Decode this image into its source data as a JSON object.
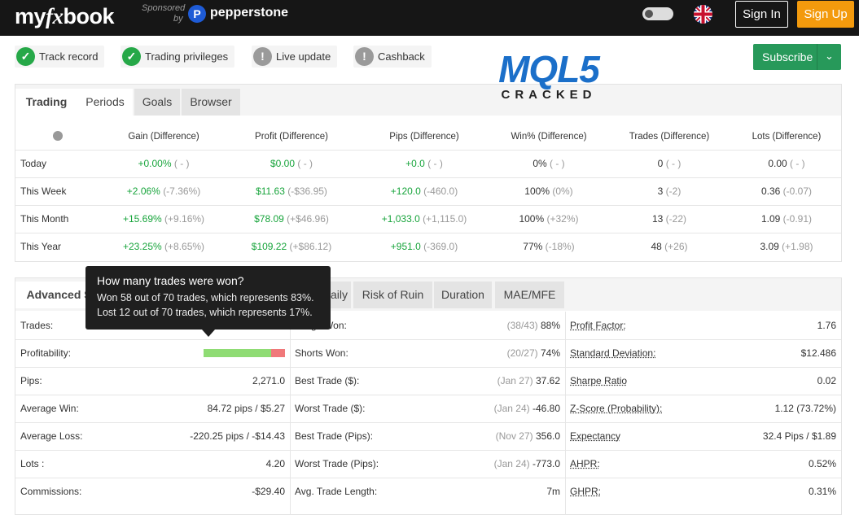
{
  "header": {
    "logo": [
      "my",
      "fx",
      "book"
    ],
    "sponsored": "Sponsored",
    "by": "by",
    "sponsor": "pepperstone",
    "sign_in": "Sign In",
    "sign_up": "Sign Up"
  },
  "badges": [
    "Track record",
    "Trading privileges",
    "Live update",
    "Cashback"
  ],
  "subscribe": "Subscribe",
  "watermark": {
    "logo": "MQL5",
    "caption": "CRACKED"
  },
  "periods": {
    "tabs": [
      "Trading",
      "Periods",
      "Goals",
      "Browser"
    ],
    "columns": [
      "Gain (Difference)",
      "Profit (Difference)",
      "Pips (Difference)",
      "Win% (Difference)",
      "Trades (Difference)",
      "Lots (Difference)"
    ],
    "rows": [
      {
        "label": "Today",
        "cells": [
          [
            "+0.00%",
            "( - )"
          ],
          [
            "$0.00",
            "( - )"
          ],
          [
            "+0.0",
            "( - )"
          ],
          [
            "0%",
            "( - )"
          ],
          [
            "0",
            "( - )"
          ],
          [
            "0.00",
            "( - )"
          ]
        ]
      },
      {
        "label": "This Week",
        "cells": [
          [
            "+2.06%",
            "(-7.36%)"
          ],
          [
            "$11.63",
            "(-$36.95)"
          ],
          [
            "+120.0",
            "(-460.0)"
          ],
          [
            "100%",
            "(0%)"
          ],
          [
            "3",
            "(-2)"
          ],
          [
            "0.36",
            "(-0.07)"
          ]
        ]
      },
      {
        "label": "This Month",
        "cells": [
          [
            "+15.69%",
            "(+9.16%)"
          ],
          [
            "$78.09",
            "(+$46.96)"
          ],
          [
            "+1,033.0",
            "(+1,115.0)"
          ],
          [
            "100%",
            "(+32%)"
          ],
          [
            "13",
            "(-22)"
          ],
          [
            "1.09",
            "(-0.91)"
          ]
        ]
      },
      {
        "label": "This Year",
        "cells": [
          [
            "+23.25%",
            "(+8.65%)"
          ],
          [
            "$109.22",
            "(+$86.12)"
          ],
          [
            "+951.0",
            "(-369.0)"
          ],
          [
            "77%",
            "(-18%)"
          ],
          [
            "48",
            "(+26)"
          ],
          [
            "3.09",
            "(+1.98)"
          ]
        ]
      }
    ]
  },
  "advanced": {
    "tabs": [
      "Advanced Statistics",
      "Daily",
      "Risk of Ruin",
      "Duration",
      "MAE/MFE"
    ],
    "tooltip": {
      "title": "How many trades were won?",
      "lines": [
        "Won 58 out of 70 trades, which represents 83%.",
        "Lost 12 out of 70 trades, which represents 17%."
      ]
    },
    "profitability": {
      "won": 83,
      "lost": 17
    },
    "columns": [
      [
        {
          "label": "Trades:"
        },
        {
          "label": "Profitability:"
        },
        {
          "label": "Pips:",
          "value": "2,271.0"
        },
        {
          "label": "Average Win:",
          "value": "84.72 pips / $5.27"
        },
        {
          "label": "Average Loss:",
          "value": "-220.25 pips / -$14.43"
        },
        {
          "label": "Lots :",
          "value": "4.20"
        },
        {
          "label": "Commissions:",
          "value": "-$29.40"
        }
      ],
      [
        {
          "label": "Longs Won:",
          "note": "(38/43)",
          "value": "88%"
        },
        {
          "label": "Shorts Won:",
          "note": "(20/27)",
          "value": "74%"
        },
        {
          "label": "Best Trade ($):",
          "note": "(Jan 27)",
          "value": "37.62"
        },
        {
          "label": "Worst Trade ($):",
          "note": "(Jan 24)",
          "value": "-46.80"
        },
        {
          "label": "Best Trade (Pips):",
          "note": "(Nov 27)",
          "value": "356.0"
        },
        {
          "label": "Worst Trade (Pips):",
          "note": "(Jan 24)",
          "value": "-773.0"
        },
        {
          "label": "Avg. Trade Length:",
          "value": "7m"
        }
      ],
      [
        {
          "label": "Profit Factor:",
          "value": "1.76"
        },
        {
          "label": "Standard Deviation:",
          "value": "$12.486"
        },
        {
          "label": "Sharpe Ratio",
          "value": "0.02"
        },
        {
          "label": "Z-Score (Probability):",
          "value": "1.12 (73.72%)"
        },
        {
          "label": "Expectancy",
          "value": "32.4 Pips / $1.89"
        },
        {
          "label": "AHPR:",
          "value": "0.52%"
        },
        {
          "label": "GHPR:",
          "value": "0.31%"
        }
      ]
    ]
  }
}
